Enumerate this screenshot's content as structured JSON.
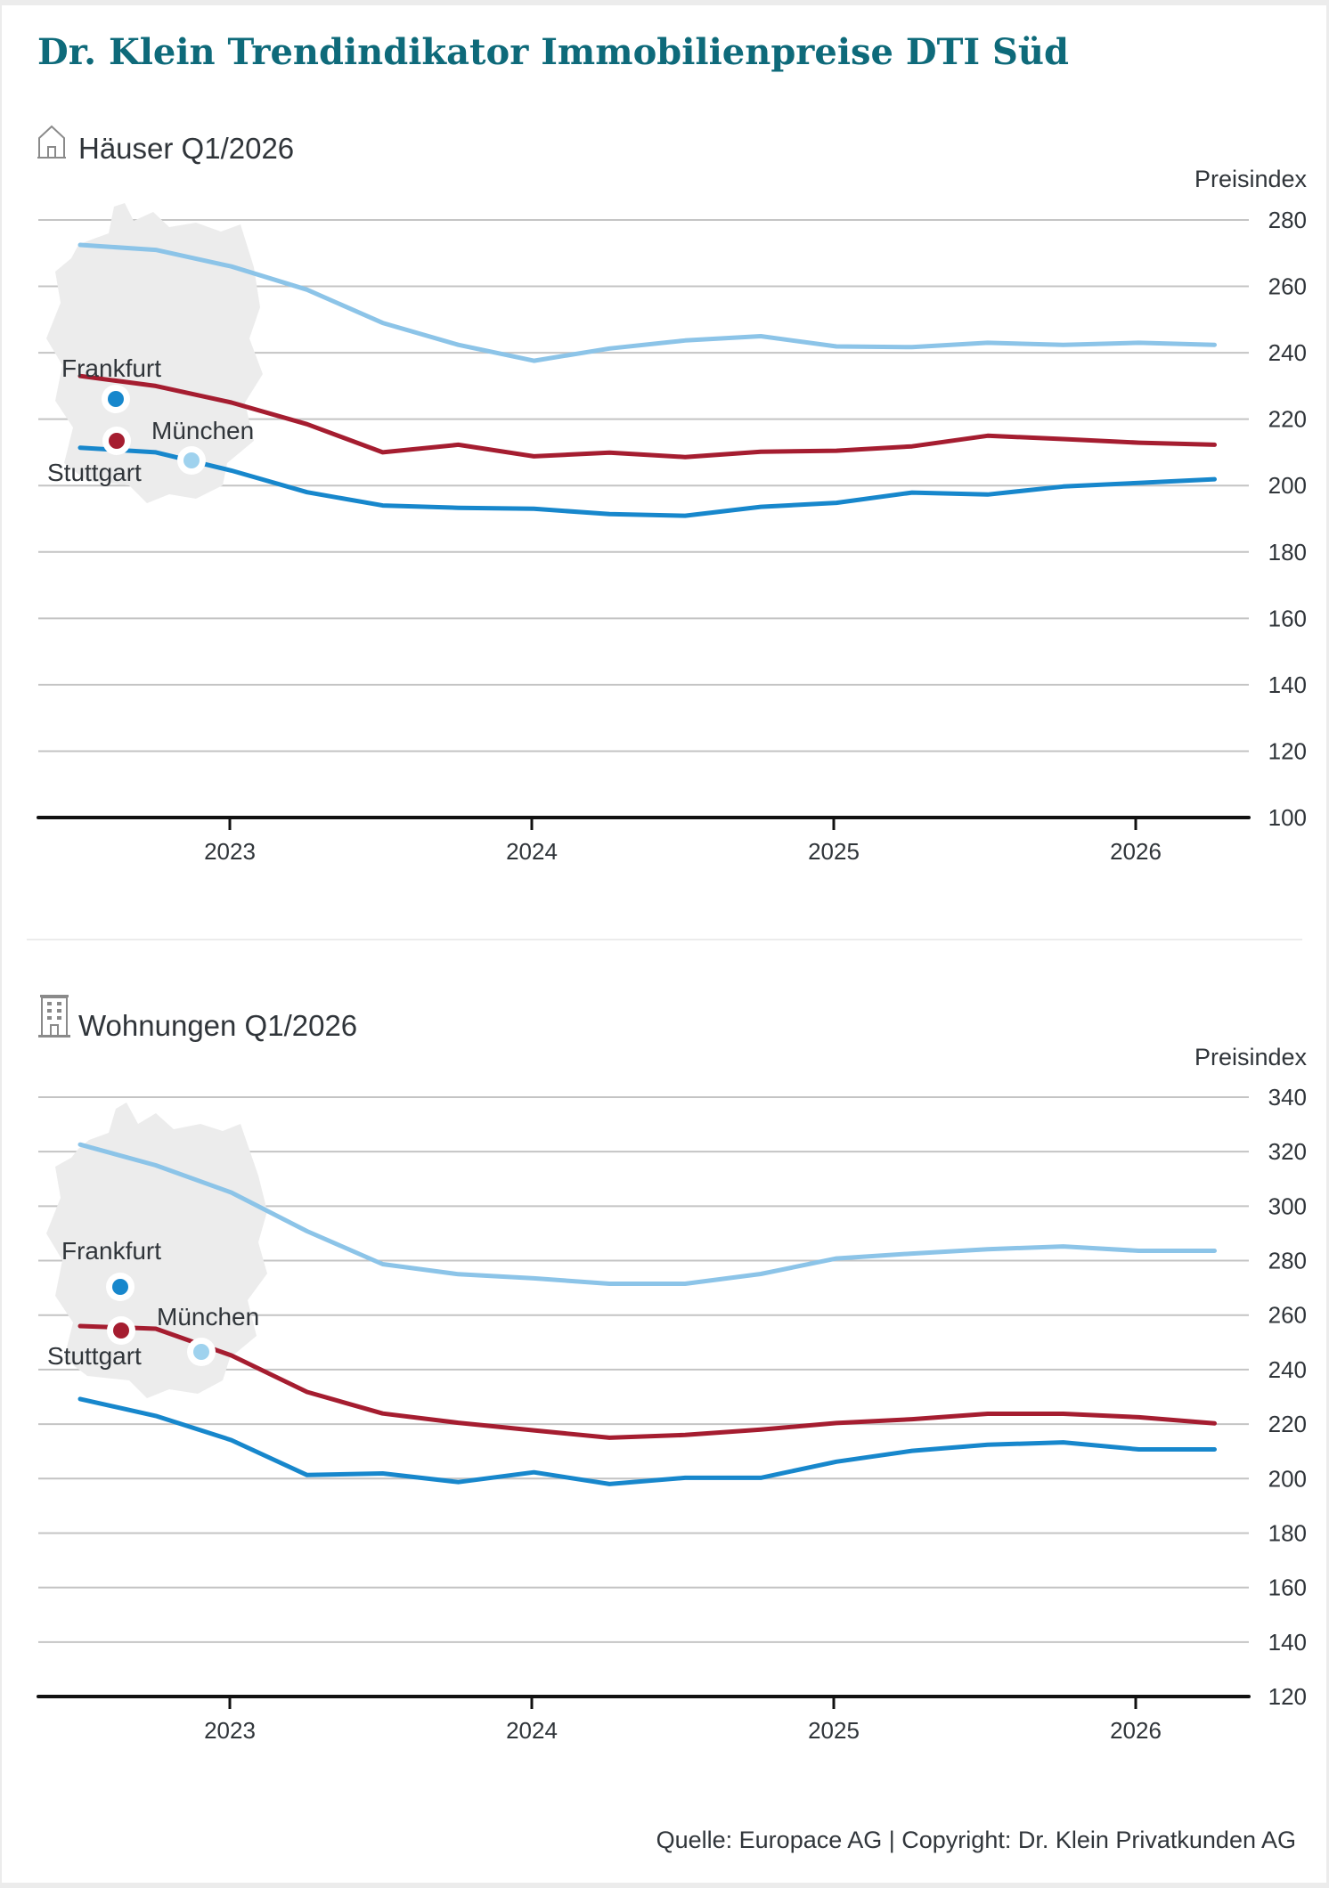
{
  "title": "Dr. Klein Trendindikator Immobilienpreise DTI Süd",
  "footer": "Quelle: Europace AG | Copyright: Dr. Klein Privatkunden AG",
  "legend": [
    {
      "city": "Frankfurt",
      "color": "#1787cc"
    },
    {
      "city": "Stuttgart",
      "color": "#a51d30"
    },
    {
      "city": "München",
      "color": "#8cc4e8"
    }
  ],
  "chart_data": [
    {
      "type": "line",
      "title": "Häuser Q1/2026",
      "icon": "house-icon",
      "ylabel": "Preisindex",
      "xlabel": "",
      "ylim": [
        100,
        280
      ],
      "yticks": [
        "100",
        "120",
        "140",
        "160",
        "180",
        "200",
        "220",
        "240",
        "260",
        "280"
      ],
      "xticks": [
        "2023",
        "2024",
        "2025",
        "2026"
      ],
      "x": [
        "Q3/2022",
        "Q4/2022",
        "Q1/2023",
        "Q2/2023",
        "Q3/2023",
        "Q4/2023",
        "Q1/2024",
        "Q2/2024",
        "Q3/2024",
        "Q4/2024",
        "Q1/2025",
        "Q2/2025",
        "Q3/2025",
        "Q4/2025",
        "Q1/2026",
        "Q2/2026"
      ],
      "grid": true,
      "legend": "top-left (map)",
      "series": [
        {
          "name": "München",
          "values": [
            272.5,
            271,
            266,
            259,
            249,
            242.4,
            237.6,
            241.3,
            243.7,
            245,
            241.9,
            241.7,
            243,
            242.4,
            243,
            242.4
          ]
        },
        {
          "name": "Stuttgart",
          "values": [
            233,
            230,
            225,
            218.5,
            210,
            212.3,
            208.8,
            209.9,
            208.6,
            210.2,
            210.5,
            211.8,
            215,
            214,
            212.9,
            212.3
          ]
        },
        {
          "name": "Frankfurt",
          "values": [
            211.4,
            210,
            204.5,
            198,
            194,
            193.3,
            193,
            191.4,
            190.9,
            193.6,
            194.8,
            197.9,
            197.3,
            199.7,
            200.8,
            201.9
          ]
        }
      ]
    },
    {
      "type": "line",
      "title": "Wohnungen Q1/2026",
      "icon": "apartment-building-icon",
      "ylabel": "Preisindex",
      "xlabel": "",
      "ylim": [
        120,
        340
      ],
      "yticks": [
        "120",
        "140",
        "160",
        "180",
        "200",
        "220",
        "240",
        "260",
        "280",
        "300",
        "320",
        "340"
      ],
      "xticks": [
        "2023",
        "2024",
        "2025",
        "2026"
      ],
      "x": [
        "Q3/2022",
        "Q4/2022",
        "Q1/2023",
        "Q2/2023",
        "Q3/2023",
        "Q4/2023",
        "Q1/2024",
        "Q2/2024",
        "Q3/2024",
        "Q4/2024",
        "Q1/2025",
        "Q2/2025",
        "Q3/2025",
        "Q4/2025",
        "Q1/2026",
        "Q2/2026"
      ],
      "grid": true,
      "legend": "top-left (map)",
      "series": [
        {
          "name": "München",
          "values": [
            322.6,
            315,
            305,
            290.8,
            278.7,
            275,
            273.5,
            271.5,
            271.5,
            275.1,
            280.8,
            282.6,
            284.2,
            285.2,
            283.6,
            283.6
          ]
        },
        {
          "name": "Stuttgart",
          "values": [
            256,
            255,
            245.2,
            231.8,
            223.9,
            220.5,
            217.7,
            215,
            216,
            218,
            220.4,
            221.8,
            223.8,
            223.8,
            222.5,
            220.3
          ]
        },
        {
          "name": "Frankfurt",
          "values": [
            229.2,
            223,
            214.1,
            201.3,
            201.9,
            198.7,
            202.3,
            198,
            200.3,
            200.3,
            206.2,
            210.2,
            212.4,
            213.3,
            210.7,
            210.7
          ]
        }
      ]
    }
  ]
}
